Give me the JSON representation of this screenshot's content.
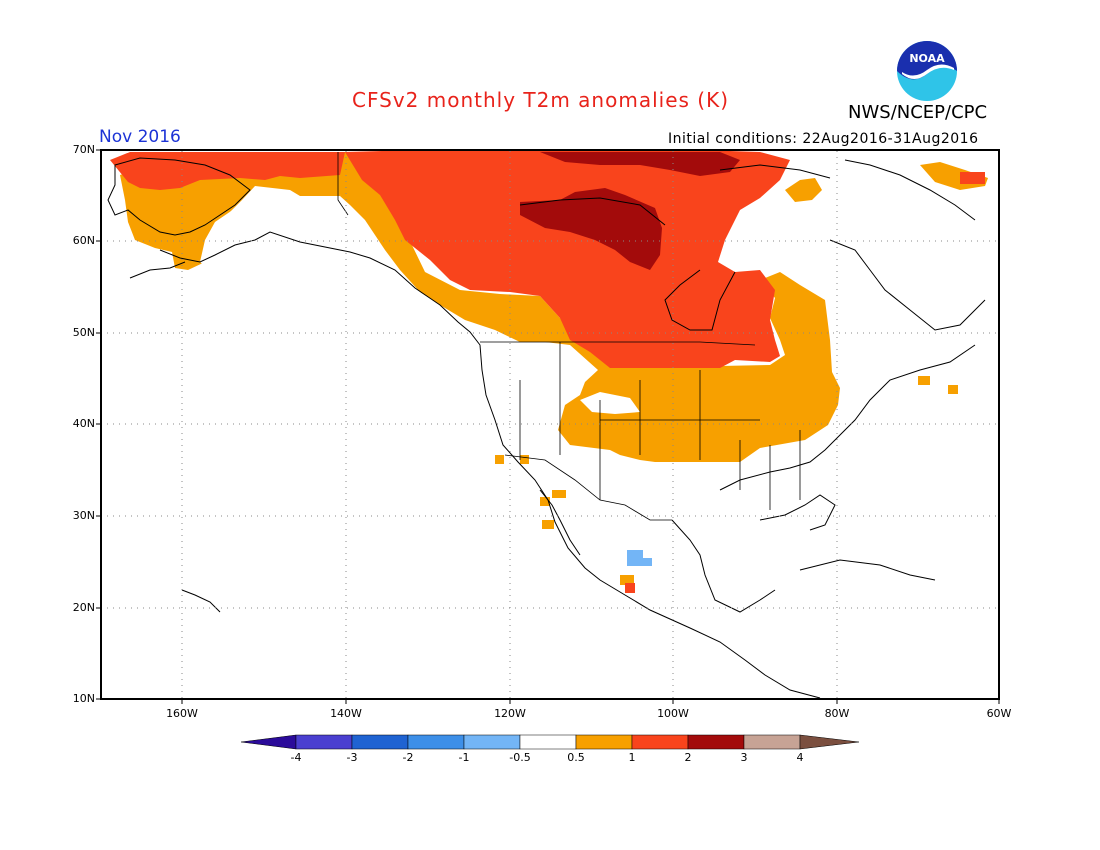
{
  "header": {
    "title": "CFSv2 monthly T2m anomalies (K)",
    "agency": "NWS/NCEP/CPC",
    "period": "Nov 2016",
    "initial_conditions": "Initial conditions: 22Aug2016-31Aug2016",
    "logo_text": "NOAA"
  },
  "colors": {
    "title": "#e8231b",
    "period": "#1c33d6",
    "below_4": "#2b0b9a",
    "c_m4_m3": "#4a3fd0",
    "c_m3_m2": "#1f63d2",
    "c_m2_m1": "#3d8fe8",
    "c_m1_m05": "#73b5f6",
    "neutral": "#ffffff",
    "c_05_1": "#f7a000",
    "c_1_2": "#f9441c",
    "c_2_3": "#a30b0b",
    "c_3_4": "#c7a395",
    "above_4": "#7b4f3f"
  },
  "map": {
    "lat_labels": [
      "70N",
      "60N",
      "50N",
      "40N",
      "30N",
      "20N",
      "10N"
    ],
    "lon_labels": [
      "160W",
      "140W",
      "120W",
      "100W",
      "80W",
      "60W"
    ]
  },
  "colorbar": {
    "labels": [
      "-4",
      "-3",
      "-2",
      "-1",
      "-0.5",
      "0.5",
      "1",
      "2",
      "3",
      "4"
    ]
  }
}
